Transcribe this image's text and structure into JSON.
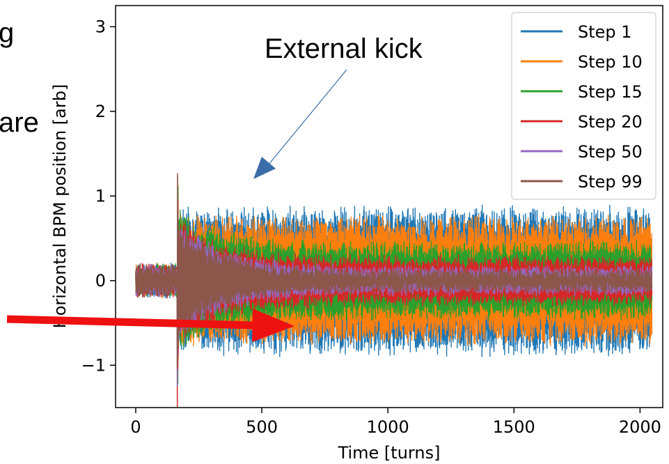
{
  "chart_data": {
    "type": "line",
    "xlabel": "Time [turns]",
    "ylabel": "Horizontal BPM position [arb]",
    "xlim": [
      -80,
      2090
    ],
    "ylim": [
      -1.5,
      3.25
    ],
    "x_ticks": [
      {
        "value": 0,
        "label": "0"
      },
      {
        "value": 500,
        "label": "500"
      },
      {
        "value": 1000,
        "label": "1000"
      },
      {
        "value": 1500,
        "label": "1500"
      },
      {
        "value": 2000,
        "label": "2000"
      }
    ],
    "y_ticks": [
      {
        "value": -1,
        "label": "−1"
      },
      {
        "value": 0,
        "label": "0"
      },
      {
        "value": 1,
        "label": "1"
      },
      {
        "value": 2,
        "label": "2"
      },
      {
        "value": 3,
        "label": "3"
      }
    ],
    "grid": false,
    "legend_position": "top-right",
    "n_turns": 2048,
    "kick_turn": 165,
    "series": [
      {
        "name": "Step 1",
        "color": "#1f77b4",
        "pre_kick_amplitude": 0.15,
        "peak": 1.85,
        "start_amplitude": 0.8,
        "end_amplitude": 0.85
      },
      {
        "name": "Step 10",
        "color": "#ff7f0e",
        "pre_kick_amplitude": 0.15,
        "peak": 1.85,
        "start_amplitude": 0.75,
        "end_amplitude": 0.72
      },
      {
        "name": "Step 15",
        "color": "#2ca02c",
        "pre_kick_amplitude": 0.15,
        "peak": 1.8,
        "start_amplitude": 0.8,
        "end_amplitude": 0.42
      },
      {
        "name": "Step 20",
        "color": "#d62728",
        "pre_kick_amplitude": 0.15,
        "peak": 1.7,
        "start_amplitude": 0.7,
        "end_amplitude": 0.25
      },
      {
        "name": "Step 50",
        "color": "#9467bd",
        "pre_kick_amplitude": 0.14,
        "peak": 1.6,
        "start_amplitude": 0.7,
        "end_amplitude": 0.13
      },
      {
        "name": "Step 99",
        "color": "#8c564b",
        "pre_kick_amplitude": 0.14,
        "peak": 1.55,
        "start_amplitude": 0.65,
        "end_amplitude": 0.09
      }
    ]
  },
  "annotations": {
    "external_kick": "External kick",
    "left_fragment_1": "g",
    "left_fragment_2": "are",
    "red_arrow_color": "#ee1111",
    "blue_arrow_color": "#3b6ea8"
  }
}
